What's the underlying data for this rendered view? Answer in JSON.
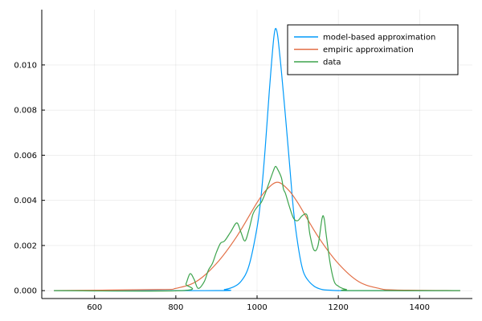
{
  "chart_data": {
    "type": "line",
    "title": "",
    "xlabel": "",
    "ylabel": "",
    "xlim": [
      470,
      1530
    ],
    "ylim": [
      -0.00035,
      0.01245
    ],
    "xticks": [
      600,
      800,
      1000,
      1200,
      1400
    ],
    "xtick_labels": [
      "600",
      "800",
      "1000",
      "1200",
      "1400"
    ],
    "yticks": [
      0.0,
      0.002,
      0.004,
      0.006,
      0.008,
      0.01
    ],
    "ytick_labels": [
      "0.000",
      "0.002",
      "0.004",
      "0.006",
      "0.008",
      "0.010"
    ],
    "grid": true,
    "legend_position": "top-right",
    "series": [
      {
        "name": "model-based approximation",
        "color": "#009AFA",
        "x": [
          500,
          900,
          920,
          940,
          960,
          980,
          1000,
          1010,
          1020,
          1030,
          1040,
          1045,
          1050,
          1055,
          1060,
          1070,
          1080,
          1090,
          1100,
          1110,
          1120,
          1140,
          1160,
          1180,
          1200,
          1220,
          1240,
          1500
        ],
        "y": [
          0.0,
          0.0,
          5e-05,
          0.00015,
          0.0004,
          0.0011,
          0.0028,
          0.0042,
          0.0063,
          0.0088,
          0.011,
          0.0116,
          0.01138,
          0.0106,
          0.0097,
          0.0077,
          0.0056,
          0.0035,
          0.0021,
          0.0011,
          0.0006,
          0.0002,
          5e-05,
          2e-05,
          0.0,
          0.0,
          0.0,
          0.0
        ]
      },
      {
        "name": "empiric approximation",
        "color": "#E26F46",
        "x": [
          500,
          760,
          800,
          850,
          900,
          950,
          1000,
          1025,
          1050,
          1075,
          1100,
          1150,
          1200,
          1250,
          1300,
          1340,
          1500
        ],
        "y": [
          0.0,
          5e-05,
          0.0001,
          0.0004,
          0.0012,
          0.0024,
          0.0039,
          0.0045,
          0.0048,
          0.0045,
          0.0039,
          0.0024,
          0.0012,
          0.0004,
          0.0001,
          3e-05,
          0.0
        ],
        "smooth": true
      },
      {
        "name": "data",
        "color": "#3DA44D",
        "x": [
          500,
          815,
          825,
          835,
          845,
          855,
          870,
          880,
          890,
          900,
          910,
          920,
          935,
          950,
          960,
          970,
          980,
          990,
          1000,
          1010,
          1020,
          1030,
          1040,
          1045,
          1050,
          1060,
          1065,
          1070,
          1080,
          1090,
          1100,
          1110,
          1120,
          1125,
          1130,
          1140,
          1150,
          1160,
          1165,
          1170,
          1180,
          1190,
          1200,
          1210,
          1220,
          1230,
          1500
        ],
        "y": [
          0.0,
          0.0,
          0.0003,
          0.00075,
          0.0005,
          0.0001,
          0.0004,
          0.0009,
          0.0012,
          0.0017,
          0.0021,
          0.0022,
          0.0026,
          0.003,
          0.0026,
          0.0022,
          0.0027,
          0.0034,
          0.0037,
          0.0039,
          0.0043,
          0.0048,
          0.0053,
          0.0055,
          0.0054,
          0.005,
          0.0045,
          0.0043,
          0.0037,
          0.0032,
          0.0031,
          0.0033,
          0.0034,
          0.0032,
          0.0025,
          0.0018,
          0.002,
          0.0032,
          0.0032,
          0.0025,
          0.0012,
          0.0004,
          0.0002,
          0.0001,
          5e-05,
          0.0,
          0.0
        ],
        "smooth": true
      }
    ]
  }
}
